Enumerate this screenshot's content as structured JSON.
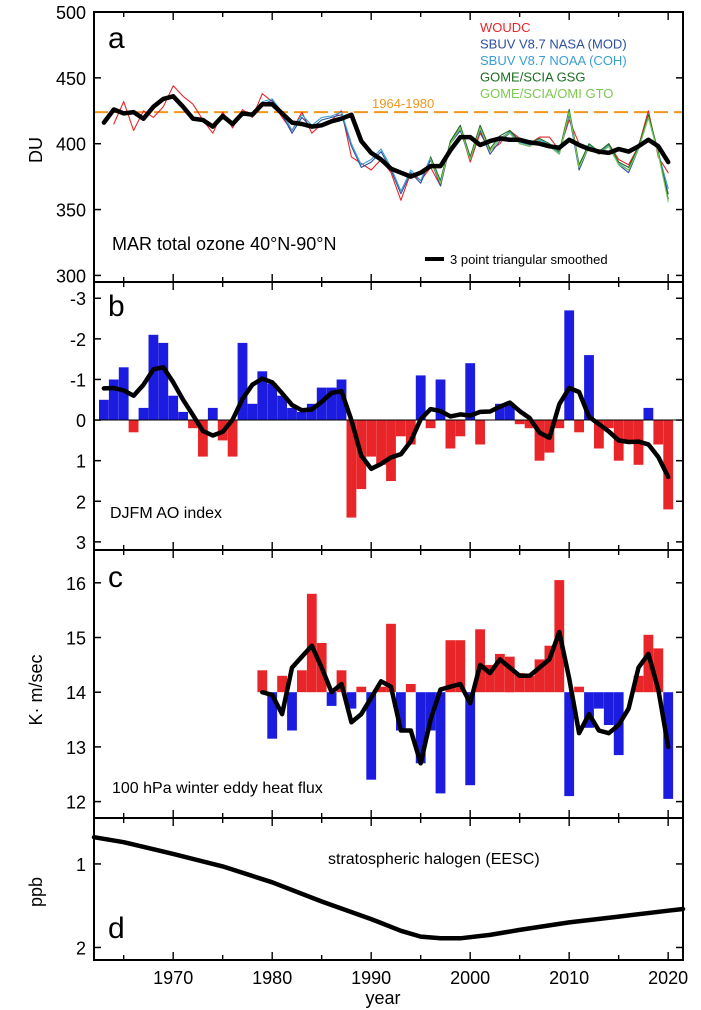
{
  "figure": {
    "xlabel": "year",
    "xticks": [
      1970,
      1980,
      1990,
      2000,
      2010,
      2020
    ],
    "xlim": [
      1962,
      2021.5
    ]
  },
  "chart_data": [
    {
      "id": "a",
      "type": "line",
      "panel_letter": "a",
      "title": "MAR total ozone  40°N-90°N",
      "ylabel": "DU",
      "ylim": [
        295,
        500
      ],
      "yticks": [
        300,
        350,
        400,
        450,
        500
      ],
      "reference_line": {
        "label": "1964-1980",
        "y": 424,
        "color": "#f0961e"
      },
      "smoothed_label": "3 point triangular smoothed",
      "series": [
        {
          "name": "WOUDC",
          "color": "#e8262a",
          "x": [
            1964,
            1965,
            1966,
            1967,
            1968,
            1969,
            1970,
            1971,
            1972,
            1973,
            1974,
            1975,
            1976,
            1977,
            1978,
            1979,
            1980,
            1981,
            1982,
            1983,
            1984,
            1985,
            1986,
            1987,
            1988,
            1989,
            1990,
            1991,
            1992,
            1993,
            1994,
            1995,
            1996,
            1997,
            1998,
            1999,
            2000,
            2001,
            2002,
            2003,
            2004,
            2005,
            2006,
            2007,
            2008,
            2009,
            2010,
            2011,
            2012,
            2013,
            2014,
            2015,
            2016,
            2017,
            2018,
            2019,
            2020
          ],
          "y": [
            415,
            432,
            410,
            425,
            420,
            428,
            444,
            436,
            430,
            418,
            408,
            424,
            412,
            426,
            420,
            438,
            432,
            420,
            410,
            424,
            408,
            415,
            418,
            425,
            390,
            385,
            380,
            388,
            378,
            357,
            378,
            372,
            382,
            368,
            400,
            412,
            386,
            408,
            395,
            400,
            410,
            404,
            400,
            405,
            405,
            395,
            418,
            400,
            396,
            392,
            400,
            388,
            384,
            398,
            425,
            390,
            378
          ]
        },
        {
          "name": "SBUV V8.7 NASA (MOD)",
          "color": "#2b4fa2",
          "x": [
            1979,
            1980,
            1981,
            1982,
            1983,
            1984,
            1985,
            1986,
            1987,
            1988,
            1989,
            1990,
            1991,
            1992,
            1993,
            1994,
            1995,
            1996,
            1997,
            1998,
            1999,
            2000,
            2001,
            2002,
            2003,
            2004,
            2005,
            2006,
            2007,
            2008,
            2009,
            2010,
            2011,
            2012,
            2013,
            2014,
            2015,
            2016,
            2017,
            2018,
            2019,
            2020
          ],
          "y": [
            430,
            433,
            422,
            408,
            420,
            412,
            418,
            420,
            422,
            398,
            382,
            386,
            394,
            380,
            362,
            378,
            370,
            388,
            368,
            400,
            410,
            388,
            410,
            392,
            402,
            408,
            400,
            398,
            402,
            398,
            392,
            422,
            380,
            398,
            392,
            398,
            384,
            378,
            396,
            420,
            392,
            362
          ]
        },
        {
          "name": "SBUV V8.7 NOAA (COH)",
          "color": "#3a9fd0",
          "x": [
            1979,
            1980,
            1981,
            1982,
            1983,
            1984,
            1985,
            1986,
            1987,
            1988,
            1989,
            1990,
            1991,
            1992,
            1993,
            1994,
            1995,
            1996,
            1997,
            1998,
            1999,
            2000,
            2001,
            2002,
            2003,
            2004,
            2005,
            2006,
            2007,
            2008,
            2009,
            2010,
            2011,
            2012,
            2013,
            2014,
            2015,
            2016,
            2017,
            2018,
            2019,
            2020
          ],
          "y": [
            432,
            434,
            424,
            410,
            422,
            414,
            420,
            421,
            424,
            400,
            384,
            388,
            396,
            382,
            364,
            380,
            372,
            390,
            370,
            402,
            412,
            390,
            412,
            394,
            404,
            409,
            401,
            399,
            403,
            399,
            393,
            424,
            382,
            399,
            393,
            399,
            385,
            380,
            398,
            421,
            393,
            366
          ]
        },
        {
          "name": "GOME/SCIA GSG",
          "color": "#1b6e20",
          "x": [
            1996,
            1997,
            1998,
            1999,
            2000,
            2001,
            2002,
            2003,
            2004,
            2005,
            2006,
            2007,
            2008,
            2009,
            2010,
            2011,
            2012,
            2013,
            2014,
            2015,
            2016,
            2017,
            2018,
            2019,
            2020
          ],
          "y": [
            390,
            372,
            402,
            414,
            390,
            414,
            396,
            406,
            410,
            402,
            400,
            404,
            400,
            394,
            426,
            384,
            400,
            394,
            400,
            386,
            382,
            398,
            422,
            394,
            358
          ]
        },
        {
          "name": "GOME/SCIA/OMI GTO",
          "color": "#7cc850",
          "x": [
            1996,
            1997,
            1998,
            1999,
            2000,
            2001,
            2002,
            2003,
            2004,
            2005,
            2006,
            2007,
            2008,
            2009,
            2010,
            2011,
            2012,
            2013,
            2014,
            2015,
            2016,
            2017,
            2018,
            2019,
            2020
          ],
          "y": [
            388,
            370,
            400,
            412,
            388,
            412,
            394,
            404,
            408,
            400,
            398,
            402,
            398,
            392,
            424,
            382,
            398,
            392,
            398,
            384,
            380,
            396,
            420,
            392,
            356
          ]
        },
        {
          "name": "3 point triangular smoothed",
          "color": "#000000",
          "x": [
            1963,
            1964,
            1965,
            1966,
            1967,
            1968,
            1969,
            1970,
            1971,
            1972,
            1973,
            1974,
            1975,
            1976,
            1977,
            1978,
            1979,
            1980,
            1981,
            1982,
            1983,
            1984,
            1985,
            1986,
            1987,
            1988,
            1989,
            1990,
            1991,
            1992,
            1993,
            1994,
            1995,
            1996,
            1997,
            1998,
            1999,
            2000,
            2001,
            2002,
            2003,
            2004,
            2005,
            2006,
            2007,
            2008,
            2009,
            2010,
            2011,
            2012,
            2013,
            2014,
            2015,
            2016,
            2017,
            2018,
            2019,
            2020
          ],
          "y": [
            416,
            426,
            423,
            424,
            419,
            428,
            434,
            436,
            428,
            419,
            418,
            413,
            421,
            415,
            423,
            422,
            430,
            430,
            423,
            416,
            415,
            413,
            414,
            417,
            419,
            422,
            402,
            393,
            388,
            381,
            378,
            375,
            378,
            383,
            383,
            395,
            405,
            405,
            399,
            402,
            404,
            403,
            403,
            401,
            400,
            398,
            397,
            403,
            399,
            396,
            394,
            393,
            396,
            394,
            398,
            403,
            398,
            386
          ]
        }
      ]
    },
    {
      "id": "b",
      "type": "bar",
      "panel_letter": "b",
      "title": "DJFM AO index",
      "ylim": [
        3.2,
        -3.4
      ],
      "ytick_labels": [
        "-3",
        "-2",
        "-1",
        "0",
        "1",
        "2",
        "3"
      ],
      "yticks": [
        -3,
        -2,
        -1,
        0,
        1,
        2,
        3
      ],
      "positive_color": "#e8262a",
      "negative_color": "#1c1ce0",
      "x": [
        1963,
        1964,
        1965,
        1966,
        1967,
        1968,
        1969,
        1970,
        1971,
        1972,
        1973,
        1974,
        1975,
        1976,
        1977,
        1978,
        1979,
        1980,
        1981,
        1982,
        1983,
        1984,
        1985,
        1986,
        1987,
        1988,
        1989,
        1990,
        1991,
        1992,
        1993,
        1994,
        1995,
        1996,
        1997,
        1998,
        1999,
        2000,
        2001,
        2002,
        2003,
        2004,
        2005,
        2006,
        2007,
        2008,
        2009,
        2010,
        2011,
        2012,
        2013,
        2014,
        2015,
        2016,
        2017,
        2018,
        2019,
        2020
      ],
      "values": [
        -0.5,
        -1.0,
        -1.3,
        0.3,
        -0.3,
        -2.1,
        -1.9,
        -0.6,
        -0.2,
        0.2,
        0.9,
        -0.3,
        0.5,
        0.9,
        -1.9,
        -0.4,
        -1.2,
        -0.9,
        -0.6,
        -0.3,
        -0.2,
        -0.4,
        -0.8,
        -0.8,
        -1.0,
        2.4,
        1.7,
        0.9,
        1.1,
        1.5,
        0.4,
        0.6,
        -1.1,
        0.2,
        -1.0,
        0.7,
        0.4,
        -1.4,
        0.6,
        0.0,
        -0.4,
        -0.4,
        0.1,
        0.2,
        1.0,
        0.8,
        0.2,
        -2.7,
        0.3,
        -1.6,
        0.7,
        0.2,
        1.0,
        0.5,
        1.1,
        -0.3,
        0.6,
        2.2
      ],
      "smooth": [
        -0.78,
        -0.79,
        -0.73,
        -0.6,
        -0.87,
        -1.25,
        -1.3,
        -0.93,
        -0.5,
        -0.12,
        0.27,
        0.38,
        0.29,
        -0.01,
        -0.52,
        -0.87,
        -1.02,
        -0.93,
        -0.66,
        -0.37,
        -0.24,
        -0.26,
        -0.45,
        -0.67,
        -0.71,
        0.0,
        0.88,
        1.2,
        1.08,
        0.92,
        0.84,
        0.52,
        -0.02,
        -0.27,
        -0.22,
        -0.09,
        -0.14,
        -0.11,
        -0.2,
        -0.21,
        -0.33,
        -0.43,
        -0.22,
        -0.05,
        0.31,
        0.44,
        -0.39,
        -0.79,
        -0.69,
        -0.08,
        0.1,
        0.28,
        0.5,
        0.54,
        0.53,
        0.6,
        0.91,
        1.4
      ]
    },
    {
      "id": "c",
      "type": "bar",
      "panel_letter": "c",
      "title": "100 hPa winter eddy heat flux",
      "ylabel": "K· m/sec",
      "ylim": [
        11.7,
        16.6
      ],
      "yticks": [
        12,
        13,
        14,
        15,
        16
      ],
      "baseline": 14.0,
      "positive_color": "#e8262a",
      "negative_color": "#1c1ce0",
      "x": [
        1979,
        1980,
        1981,
        1982,
        1983,
        1984,
        1985,
        1986,
        1987,
        1988,
        1989,
        1990,
        1991,
        1992,
        1993,
        1994,
        1995,
        1996,
        1997,
        1998,
        1999,
        2000,
        2001,
        2002,
        2003,
        2004,
        2005,
        2006,
        2007,
        2008,
        2009,
        2010,
        2011,
        2012,
        2013,
        2014,
        2015,
        2016,
        2017,
        2018,
        2019,
        2020
      ],
      "values": [
        14.4,
        13.15,
        14.3,
        13.3,
        14.4,
        15.8,
        14.9,
        13.75,
        14.4,
        13.7,
        14.1,
        12.4,
        14.1,
        15.25,
        13.3,
        14.15,
        12.7,
        13.3,
        12.15,
        14.95,
        14.95,
        12.3,
        15.15,
        14.5,
        14.7,
        14.65,
        14.35,
        14.3,
        14.6,
        14.85,
        16.05,
        12.1,
        14.1,
        13.35,
        13.7,
        13.4,
        12.85,
        14.0,
        14.3,
        15.05,
        14.8,
        12.05
      ],
      "smooth": [
        14.0,
        13.95,
        13.6,
        14.45,
        14.65,
        14.85,
        14.45,
        14.0,
        14.15,
        13.45,
        13.6,
        13.9,
        14.2,
        14.1,
        13.3,
        13.3,
        12.7,
        13.5,
        14.05,
        14.1,
        14.15,
        13.8,
        14.5,
        14.35,
        14.6,
        14.45,
        14.3,
        14.3,
        14.45,
        14.6,
        15.1,
        14.25,
        13.25,
        13.6,
        13.3,
        13.25,
        13.4,
        13.7,
        14.45,
        14.7,
        14.05,
        13.0
      ]
    },
    {
      "id": "d",
      "type": "line",
      "panel_letter": "d",
      "title": "stratospheric halogen (EESC)",
      "ylabel": "ppb",
      "ylim": [
        2.15,
        0.45
      ],
      "yticks": [
        1,
        2
      ],
      "x": [
        1962,
        1965,
        1970,
        1975,
        1980,
        1985,
        1990,
        1993,
        1995,
        1997,
        1999,
        2002,
        2005,
        2010,
        2015,
        2020,
        2021.5
      ],
      "y": [
        0.68,
        0.74,
        0.88,
        1.03,
        1.22,
        1.45,
        1.66,
        1.8,
        1.87,
        1.89,
        1.89,
        1.85,
        1.79,
        1.7,
        1.63,
        1.56,
        1.54
      ]
    }
  ]
}
